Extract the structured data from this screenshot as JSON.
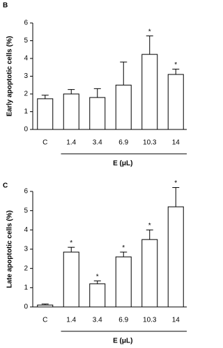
{
  "chart_data": [
    {
      "type": "bar",
      "panel": "B",
      "ylabel": "Early apoptotic cells (%)",
      "xlabel": "E (μL)",
      "categories": [
        "C",
        "1.4",
        "3.4",
        "6.9",
        "10.3",
        "14"
      ],
      "values": [
        1.73,
        2.0,
        1.8,
        2.5,
        4.23,
        3.1
      ],
      "errors": [
        0.2,
        0.25,
        0.5,
        1.3,
        1.04,
        0.3
      ],
      "markers": [
        null,
        null,
        null,
        null,
        "*",
        "*"
      ],
      "color": "#ffffff",
      "ylim": [
        0,
        6
      ],
      "yticks": [
        0,
        1,
        2,
        3,
        4,
        5,
        6
      ]
    },
    {
      "type": "bar",
      "panel": "C",
      "ylabel": "Late apoptotic cells (%)",
      "xlabel": "E (μL)",
      "categories": [
        "C",
        "1.4",
        "3.4",
        "6.9",
        "10.3",
        "14"
      ],
      "values": [
        0.1,
        2.85,
        1.2,
        2.6,
        3.5,
        5.2
      ],
      "errors": [
        0.05,
        0.25,
        0.15,
        0.25,
        0.5,
        1.0
      ],
      "markers": [
        null,
        "*",
        "*",
        "*",
        "*",
        "*"
      ],
      "color": "#ffffff",
      "ylim": [
        0,
        6
      ],
      "yticks": [
        0,
        1,
        2,
        3,
        4,
        5,
        6
      ]
    }
  ]
}
